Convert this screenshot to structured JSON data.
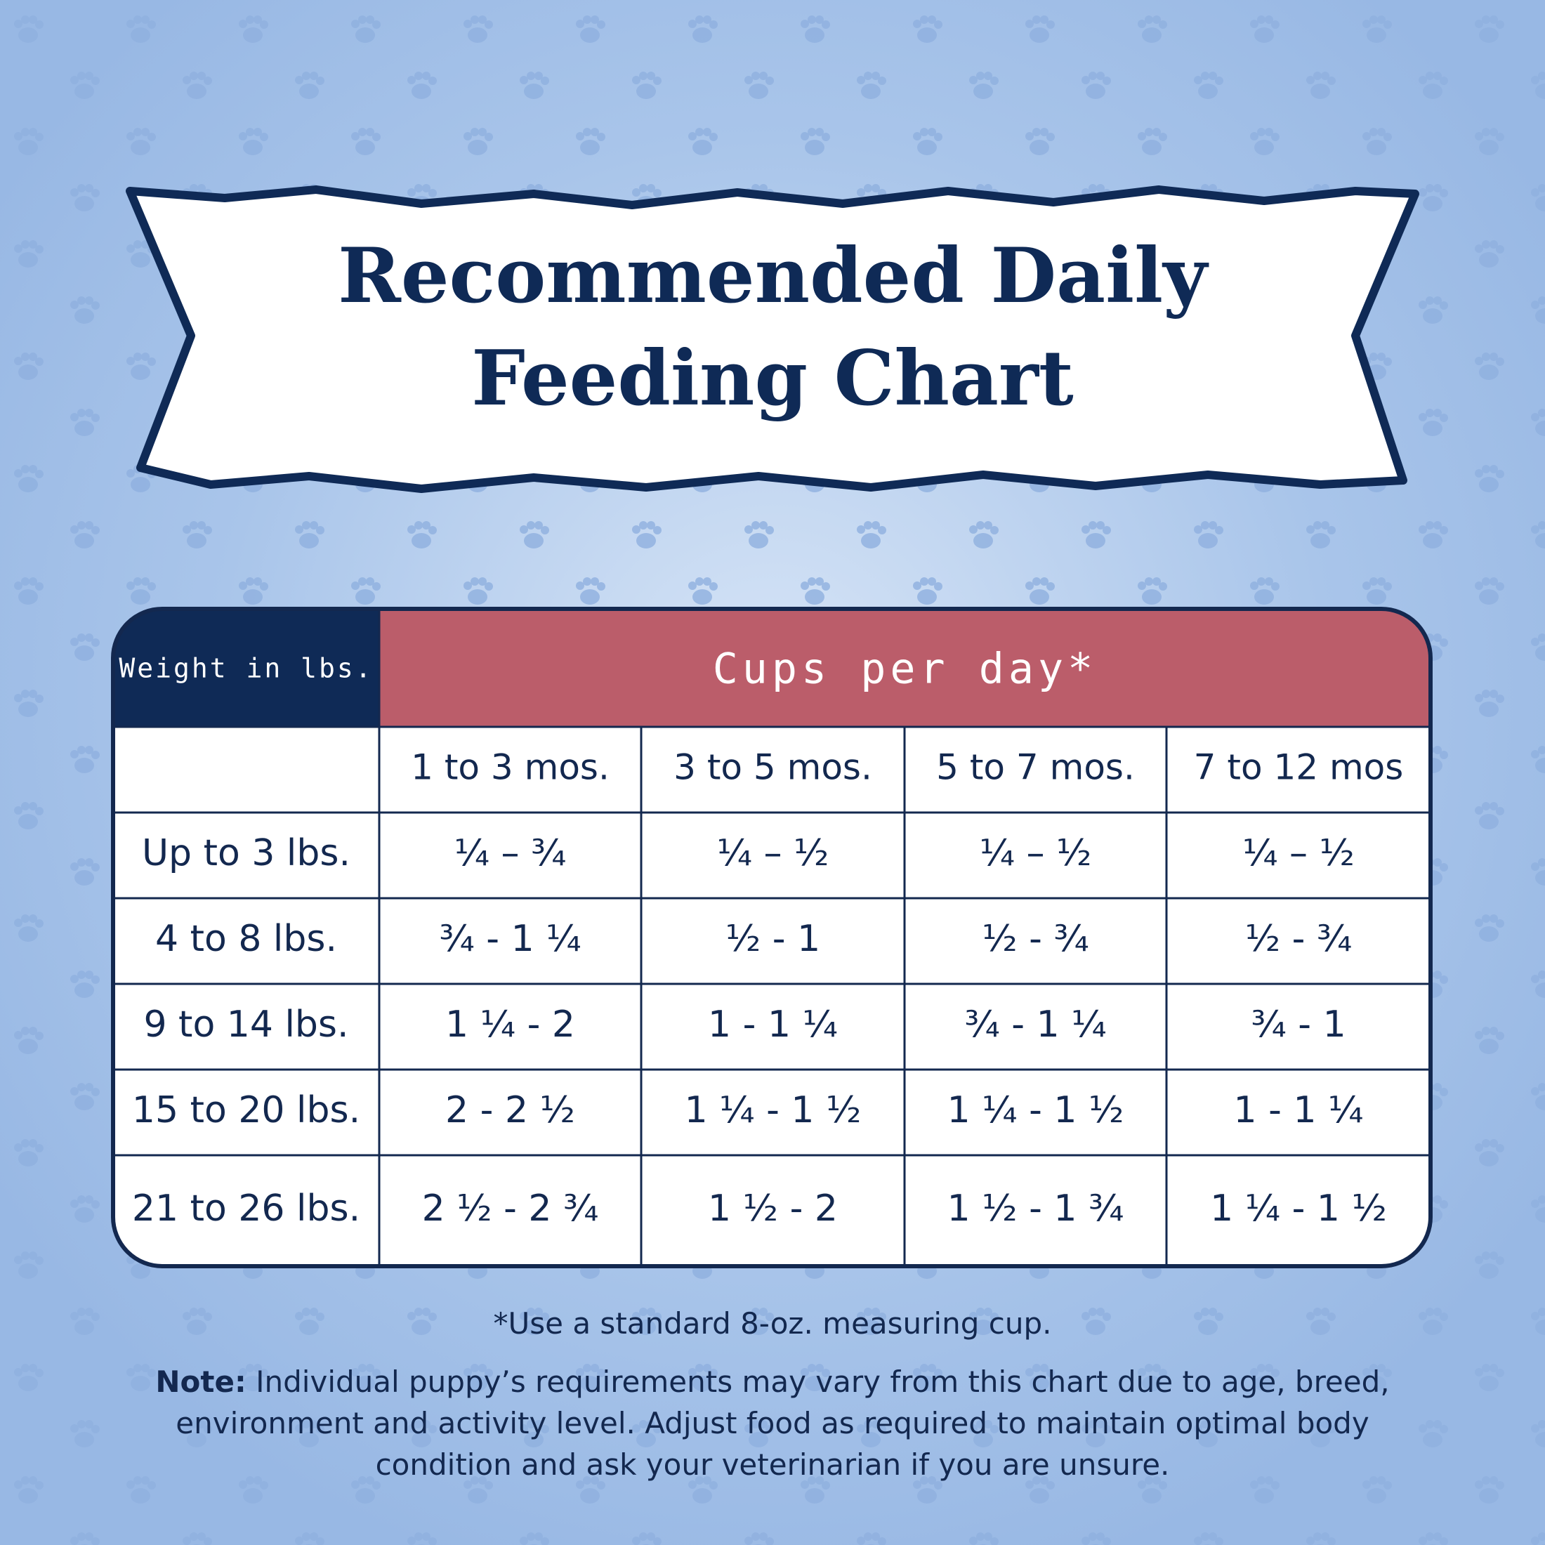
{
  "title": [
    "Recommended Daily",
    "Feeding Chart"
  ],
  "table": {
    "corner_header": "Weight in lbs.",
    "group_header": "Cups per day*",
    "columns": [
      "1 to 3 mos.",
      "3 to 5 mos.",
      "5 to 7 mos.",
      "7 to 12 mos"
    ],
    "rows": [
      [
        "Up to 3 lbs.",
        "¼ – ¾",
        "¼ – ½",
        "¼ – ½",
        "¼ – ½"
      ],
      [
        "4 to 8 lbs.",
        "¾ - 1 ¼",
        "½ - 1",
        "½ - ¾",
        "½ - ¾"
      ],
      [
        "9 to 14 lbs.",
        "1 ¼ - 2",
        "1 - 1 ¼",
        "¾ - 1 ¼",
        "¾ - 1"
      ],
      [
        "15 to 20 lbs.",
        "2 - 2 ½",
        "1 ¼ - 1 ½",
        "1 ¼ - 1 ½",
        "1 - 1 ¼"
      ],
      [
        "21 to 26 lbs.",
        "2 ½ - 2 ¾",
        "1 ½ - 2",
        "1 ½ - 1 ¾",
        "1 ¼ - 1 ½"
      ]
    ]
  },
  "footnote": "*Use a standard 8-oz. measuring cup.",
  "note": {
    "label": "Note:",
    "text": "Individual puppy’s requirements may vary from this chart due to age, breed, environment and activity level. Adjust food as required to maintain optimal body condition and ask your veterinarian if you are unsure."
  }
}
